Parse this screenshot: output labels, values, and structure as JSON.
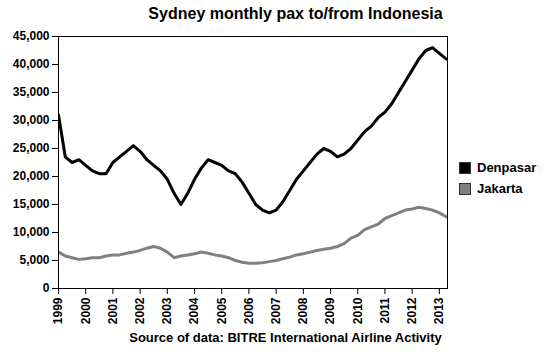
{
  "chart_data": {
    "type": "line",
    "title": "Sydney monthly pax to/from Indonesia",
    "caption": "Source of data: BITRE International Airline Activity",
    "x": [
      1999,
      1999.25,
      1999.5,
      1999.75,
      2000,
      2000.25,
      2000.5,
      2000.75,
      2001,
      2001.25,
      2001.5,
      2001.75,
      2002,
      2002.25,
      2002.5,
      2002.75,
      2003,
      2003.25,
      2003.5,
      2003.75,
      2004,
      2004.25,
      2004.5,
      2004.75,
      2005,
      2005.25,
      2005.5,
      2005.75,
      2006,
      2006.25,
      2006.5,
      2006.75,
      2007,
      2007.25,
      2007.5,
      2007.75,
      2008,
      2008.25,
      2008.5,
      2008.75,
      2009,
      2009.25,
      2009.5,
      2009.75,
      2010,
      2010.25,
      2010.5,
      2010.75,
      2011,
      2011.25,
      2011.5,
      2011.75,
      2012,
      2012.25,
      2012.5,
      2012.75,
      2013,
      2013.25
    ],
    "series": [
      {
        "name": "Denpasar",
        "color": "#000000",
        "values": [
          31000,
          23500,
          22500,
          23000,
          22000,
          21000,
          20500,
          20500,
          22500,
          23500,
          24500,
          25500,
          24500,
          23000,
          22000,
          21000,
          19500,
          17000,
          15000,
          17000,
          19500,
          21500,
          23000,
          22500,
          22000,
          21000,
          20500,
          19000,
          17000,
          15000,
          14000,
          13500,
          14000,
          15500,
          17500,
          19500,
          21000,
          22500,
          24000,
          25000,
          24500,
          23500,
          24000,
          25000,
          26500,
          28000,
          29000,
          30500,
          31500,
          33000,
          35000,
          37000,
          39000,
          41000,
          42500,
          43000,
          42000,
          41000
        ]
      },
      {
        "name": "Jakarta",
        "color": "#808080",
        "values": [
          6500,
          5800,
          5500,
          5200,
          5300,
          5500,
          5500,
          5800,
          6000,
          6000,
          6300,
          6500,
          6800,
          7200,
          7500,
          7200,
          6500,
          5500,
          5800,
          6000,
          6200,
          6500,
          6300,
          6000,
          5800,
          5500,
          5000,
          4700,
          4500,
          4500,
          4600,
          4800,
          5000,
          5300,
          5600,
          6000,
          6200,
          6500,
          6800,
          7000,
          7200,
          7500,
          8000,
          9000,
          9500,
          10500,
          11000,
          11500,
          12500,
          13000,
          13500,
          14000,
          14200,
          14500,
          14300,
          14000,
          13500,
          12800
        ]
      }
    ],
    "xlim": [
      1999,
      2013.3
    ],
    "xticks": [
      1999,
      2000,
      2001,
      2002,
      2003,
      2004,
      2005,
      2006,
      2007,
      2008,
      2009,
      2010,
      2011,
      2012,
      2013
    ],
    "ylim": [
      0,
      45000
    ],
    "yticks": [
      0,
      {
        "value": 5000,
        "label": "5,000"
      },
      {
        "value": 10000,
        "label": "10,000"
      },
      {
        "value": 15000,
        "label": "15,000"
      },
      {
        "value": 20000,
        "label": "20,000"
      },
      {
        "value": 25000,
        "label": "25,000"
      },
      {
        "value": 30000,
        "label": "30,000"
      },
      {
        "value": 35000,
        "label": "35,000"
      },
      {
        "value": 40000,
        "label": "40,000"
      },
      {
        "value": 45000,
        "label": "45,000"
      }
    ],
    "grid": false,
    "legend": "right"
  }
}
